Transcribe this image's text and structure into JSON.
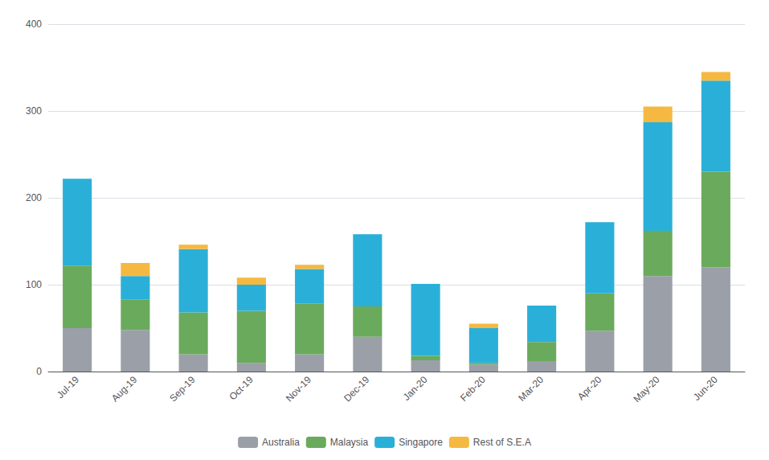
{
  "chart_data": {
    "type": "bar",
    "categories": [
      "Jul-19",
      "Aug-19",
      "Sep-19",
      "Oct-19",
      "Nov-19",
      "Dec-19",
      "Jan-20",
      "Feb-20",
      "Mar-20",
      "Apr-20",
      "May-20",
      "Jun-20"
    ],
    "series": [
      {
        "name": "Australia",
        "color": "#9b9fa8",
        "values": [
          50,
          48,
          20,
          10,
          20,
          40,
          13,
          8,
          12,
          47,
          110,
          120
        ]
      },
      {
        "name": "Malaysia",
        "color": "#6aaa5c",
        "values": [
          72,
          35,
          48,
          60,
          58,
          35,
          5,
          2,
          22,
          43,
          52,
          110
        ]
      },
      {
        "name": "Singapore",
        "color": "#2ab0d8",
        "values": [
          100,
          27,
          73,
          30,
          40,
          83,
          83,
          40,
          42,
          82,
          125,
          105
        ]
      },
      {
        "name": "Rest of S.E.A",
        "color": "#f5b942",
        "values": [
          0,
          15,
          5,
          8,
          5,
          0,
          0,
          5,
          0,
          0,
          18,
          10
        ]
      }
    ],
    "stacked": true,
    "ylim": [
      0,
      400
    ],
    "yticks": [
      0,
      100,
      200,
      300,
      400
    ],
    "grid": true,
    "legend": "bottom"
  }
}
